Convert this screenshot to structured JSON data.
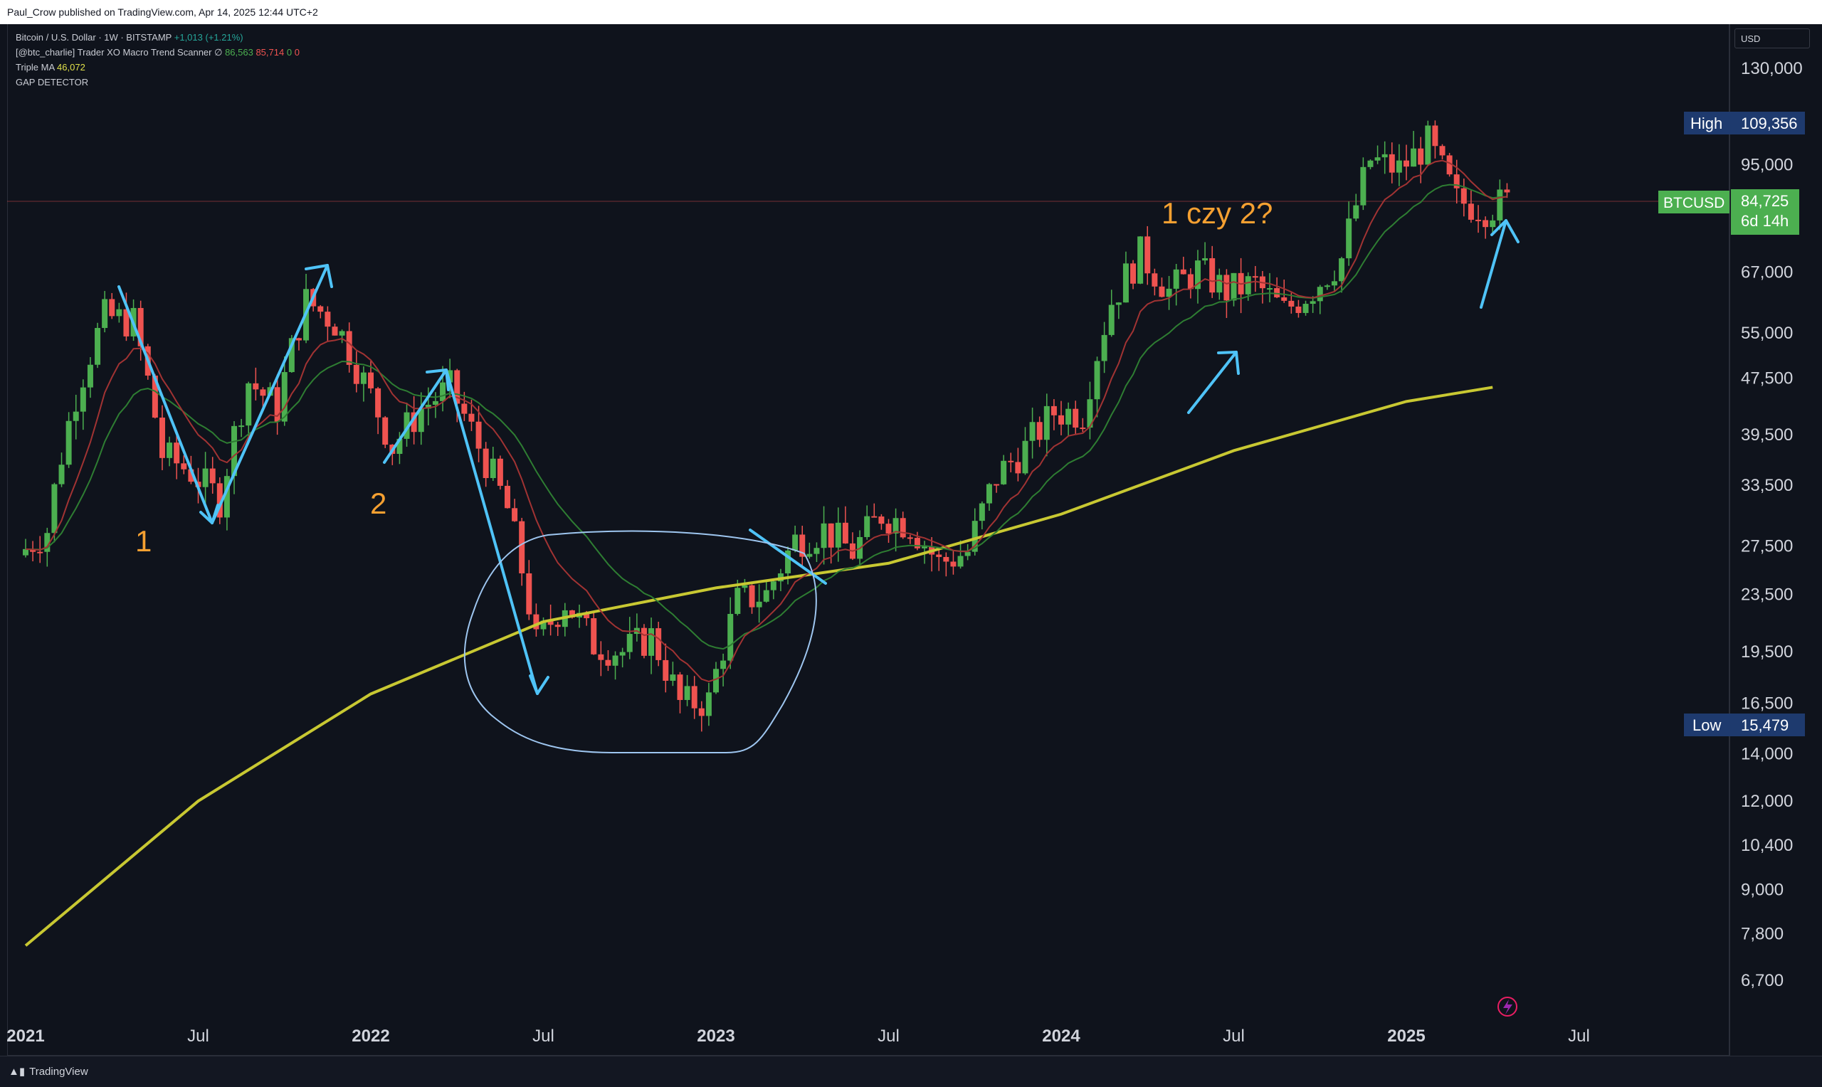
{
  "header": {
    "published": "Paul_Crow published on TradingView.com, Apr 14, 2025 12:44 UTC+2"
  },
  "legend": {
    "symbol": "Bitcoin / U.S. Dollar · 1W · BITSTAMP",
    "change": "+1,013 (+1.21%)",
    "indicator1": "[@btc_charlie] Trader XO Macro Trend Scanner",
    "indicator1_glyph": "∅",
    "indicator1_v1": "86,563",
    "indicator1_v2": "85,714",
    "indicator1_v3": "0",
    "indicator1_v4": "0",
    "indicator2": "Triple MA",
    "indicator2_value": "46,072",
    "indicator3": "GAP DETECTOR"
  },
  "price_scale": {
    "currency": "USD",
    "high_label": "High",
    "high_value": "109,356",
    "low_label": "Low",
    "low_value": "15,479",
    "current_symbol": "BTCUSD",
    "current_price": "84,725",
    "countdown": "6d 14h",
    "ticks": [
      "130,000",
      "95,000",
      "67,000",
      "55,000",
      "47,500",
      "39,500",
      "33,500",
      "27,500",
      "23,500",
      "19,500",
      "16,500",
      "14,000",
      "12,000",
      "10,400",
      "9,000",
      "7,800",
      "6,700"
    ]
  },
  "time_axis": {
    "ticks": [
      "2021",
      "Jul",
      "2022",
      "Jul",
      "2023",
      "Jul",
      "2024",
      "Jul",
      "2025",
      "Jul"
    ]
  },
  "annotations": {
    "label_1": "1",
    "label_2": "2",
    "label_question": "1 czy 2?"
  },
  "footer": {
    "brand": "TradingView"
  },
  "colors": {
    "background": "#0f131c",
    "candle_up": "#4caf50",
    "candle_down": "#ef5350",
    "ma_long": "#c8c832",
    "arrows": "#4fc3f7",
    "annotation_text": "#f5a031",
    "current_price_tag": "#4caf50",
    "high_low_tag": "#1e3a6e"
  },
  "chart_data": {
    "type": "candlestick",
    "title": "Bitcoin / U.S. Dollar · 1W · BITSTAMP",
    "xlabel": "",
    "ylabel": "",
    "y_scale": "log",
    "ylim": [
      5800,
      150000
    ],
    "x_range": [
      "2021-01",
      "2025-10"
    ],
    "current_price": 84725,
    "all_time_high": 109356,
    "period_low": 15479,
    "series": [
      {
        "name": "BTCUSD close (approx.)",
        "points": [
          [
            "2021-01",
            29000
          ],
          [
            "2021-02",
            45000
          ],
          [
            "2021-03",
            58000
          ],
          [
            "2021-04",
            57000
          ],
          [
            "2021-05",
            37000
          ],
          [
            "2021-06",
            35000
          ],
          [
            "2021-07",
            32000
          ],
          [
            "2021-08",
            47000
          ],
          [
            "2021-09",
            43000
          ],
          [
            "2021-10",
            61000
          ],
          [
            "2021-11",
            57000
          ],
          [
            "2021-12",
            47000
          ],
          [
            "2022-01",
            38000
          ],
          [
            "2022-02",
            43000
          ],
          [
            "2022-03",
            46000
          ],
          [
            "2022-04",
            38000
          ],
          [
            "2022-05",
            31000
          ],
          [
            "2022-06",
            20000
          ],
          [
            "2022-07",
            23000
          ],
          [
            "2022-08",
            20000
          ],
          [
            "2022-09",
            19500
          ],
          [
            "2022-10",
            20500
          ],
          [
            "2022-11",
            16500
          ],
          [
            "2022-12",
            16600
          ],
          [
            "2023-01",
            23000
          ],
          [
            "2023-02",
            23500
          ],
          [
            "2023-03",
            28000
          ],
          [
            "2023-04",
            29000
          ],
          [
            "2023-05",
            27000
          ],
          [
            "2023-06",
            30500
          ],
          [
            "2023-07",
            29500
          ],
          [
            "2023-08",
            26000
          ],
          [
            "2023-09",
            27000
          ],
          [
            "2023-10",
            34500
          ],
          [
            "2023-11",
            37800
          ],
          [
            "2023-12",
            42500
          ],
          [
            "2024-01",
            42500
          ],
          [
            "2024-02",
            61000
          ],
          [
            "2024-03",
            71000
          ],
          [
            "2024-04",
            63000
          ],
          [
            "2024-05",
            67500
          ],
          [
            "2024-06",
            63000
          ],
          [
            "2024-07",
            64500
          ],
          [
            "2024-08",
            59000
          ],
          [
            "2024-09",
            63500
          ],
          [
            "2024-10",
            70000
          ],
          [
            "2024-11",
            96500
          ],
          [
            "2024-12",
            93500
          ],
          [
            "2025-01",
            102000
          ],
          [
            "2025-02",
            84500
          ],
          [
            "2025-03",
            82500
          ],
          [
            "2025-04",
            84725
          ]
        ]
      },
      {
        "name": "Triple MA (long)",
        "points": [
          [
            "2021-01",
            7500
          ],
          [
            "2021-07",
            12000
          ],
          [
            "2022-01",
            17000
          ],
          [
            "2022-07",
            21500
          ],
          [
            "2023-01",
            24000
          ],
          [
            "2023-07",
            26000
          ],
          [
            "2024-01",
            30500
          ],
          [
            "2024-07",
            37500
          ],
          [
            "2025-01",
            44000
          ],
          [
            "2025-04",
            46072
          ]
        ]
      }
    ]
  }
}
